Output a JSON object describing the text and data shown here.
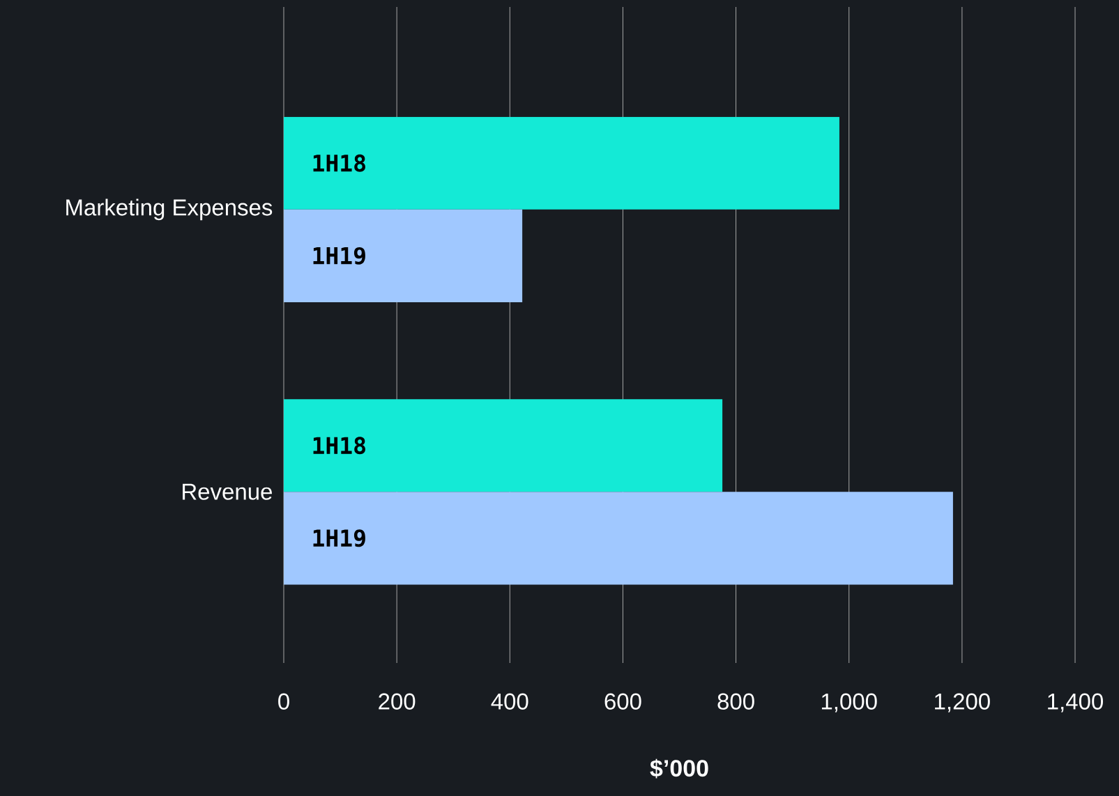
{
  "chart_data": {
    "type": "bar",
    "orientation": "horizontal",
    "xlabel": "$’000",
    "categories": [
      "Marketing Expenses",
      "Revenue"
    ],
    "series": [
      {
        "name": "1H18",
        "color": "#14ead6",
        "values": [
          983,
          776
        ]
      },
      {
        "name": "1H19",
        "color": "#a0c8ff",
        "values": [
          422,
          1184
        ]
      }
    ],
    "xlim": [
      0,
      1400
    ],
    "xticks": [
      0,
      200,
      400,
      600,
      800,
      {
        "value": 1000,
        "label": "1,000"
      },
      {
        "value": 1200,
        "label": "1,200"
      },
      {
        "value": 1400,
        "label": "1,400"
      }
    ],
    "grid": "x"
  }
}
